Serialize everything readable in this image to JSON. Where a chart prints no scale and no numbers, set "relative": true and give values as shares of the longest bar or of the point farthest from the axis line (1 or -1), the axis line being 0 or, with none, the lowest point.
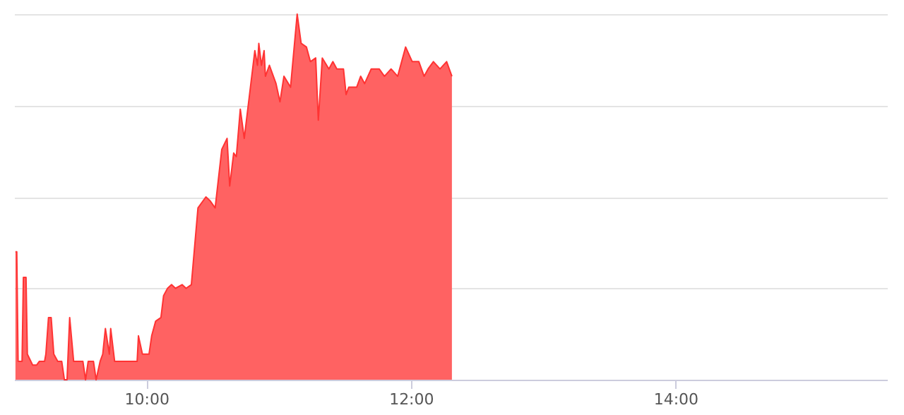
{
  "chart_data": {
    "type": "area",
    "relative": true,
    "grid": "y",
    "xlim": [
      9,
      15.6
    ],
    "xticks": [
      {
        "value": 10,
        "label": "10:00"
      },
      {
        "value": 12,
        "label": "12:00"
      },
      {
        "value": 14,
        "label": "14:00"
      }
    ],
    "x": [
      9.01,
      9.02,
      9.03,
      9.06,
      9.07,
      9.09,
      9.1,
      9.14,
      9.17,
      9.19,
      9.23,
      9.24,
      9.26,
      9.28,
      9.3,
      9.33,
      9.36,
      9.38,
      9.4,
      9.42,
      9.45,
      9.52,
      9.54,
      9.56,
      9.6,
      9.62,
      9.65,
      9.67,
      9.69,
      9.72,
      9.73,
      9.76,
      9.93,
      9.94,
      9.97,
      10.02,
      10.04,
      10.07,
      10.11,
      10.13,
      10.16,
      10.19,
      10.22,
      10.27,
      10.3,
      10.34,
      10.39,
      10.45,
      10.48,
      10.52,
      10.57,
      10.61,
      10.63,
      10.66,
      10.68,
      10.71,
      10.74,
      10.79,
      10.82,
      10.84,
      10.85,
      10.87,
      10.89,
      10.9,
      10.93,
      10.98,
      11.01,
      11.04,
      11.09,
      11.14,
      11.17,
      11.21,
      11.24,
      11.28,
      11.3,
      11.33,
      11.38,
      11.41,
      11.44,
      11.49,
      11.51,
      11.53,
      11.59,
      11.62,
      11.65,
      11.7,
      11.76,
      11.8,
      11.85,
      11.9,
      11.96,
      12.01,
      12.06,
      12.1,
      12.13,
      12.17,
      12.22,
      12.27,
      12.31
    ],
    "series": [
      {
        "color": "#ff6262",
        "values": [
          0.35,
          0.35,
          0.05,
          0.05,
          0.28,
          0.28,
          0.07,
          0.04,
          0.04,
          0.05,
          0.05,
          0.07,
          0.17,
          0.17,
          0.07,
          0.05,
          0.05,
          0,
          0,
          0.17,
          0.05,
          0.05,
          0,
          0.05,
          0.05,
          0,
          0.05,
          0.07,
          0.14,
          0.07,
          0.14,
          0.05,
          0.05,
          0.12,
          0.07,
          0.07,
          0.12,
          0.16,
          0.17,
          0.23,
          0.25,
          0.26,
          0.25,
          0.26,
          0.25,
          0.26,
          0.47,
          0.5,
          0.49,
          0.47,
          0.63,
          0.66,
          0.53,
          0.62,
          0.61,
          0.74,
          0.66,
          0.81,
          0.9,
          0.86,
          0.92,
          0.86,
          0.9,
          0.83,
          0.86,
          0.81,
          0.76,
          0.83,
          0.8,
          1.0,
          0.92,
          0.91,
          0.87,
          0.88,
          0.71,
          0.88,
          0.85,
          0.87,
          0.85,
          0.85,
          0.78,
          0.8,
          0.8,
          0.83,
          0.81,
          0.85,
          0.85,
          0.83,
          0.85,
          0.83,
          0.91,
          0.87,
          0.87,
          0.83,
          0.85,
          0.87,
          0.85,
          0.87,
          0.83
        ]
      }
    ]
  }
}
